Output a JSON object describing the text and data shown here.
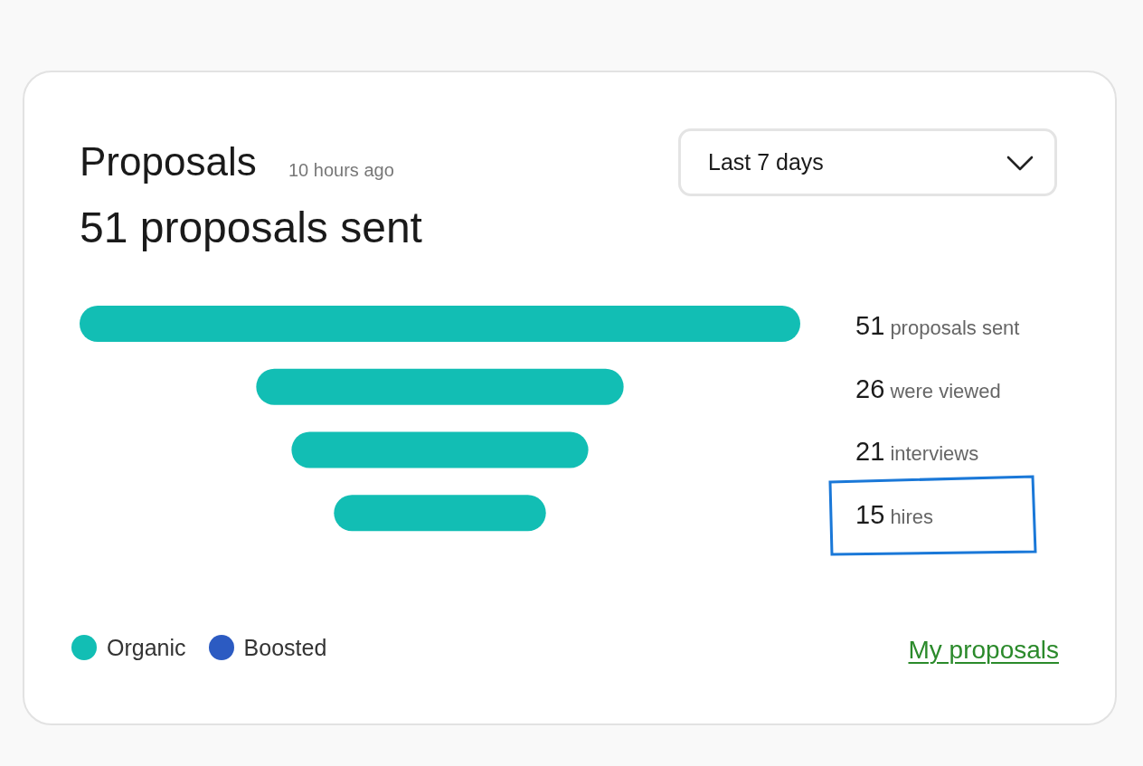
{
  "chart_data": {
    "type": "other",
    "title": "Proposals",
    "subtitle": "51 proposals sent",
    "annotations": [
      "10 hours ago",
      "Last 7 days",
      "My proposals"
    ],
    "categories": [
      "proposals sent",
      "were viewed",
      "interviews",
      "hires"
    ],
    "series": [
      {
        "name": "Organic",
        "color": "#12beb4",
        "values": [
          51,
          26,
          21,
          15
        ]
      },
      {
        "name": "Boosted",
        "color": "#2c5bc2",
        "values": [
          null,
          null,
          null,
          null
        ]
      }
    ],
    "data_labels": true,
    "legend": "bottom left"
  }
}
